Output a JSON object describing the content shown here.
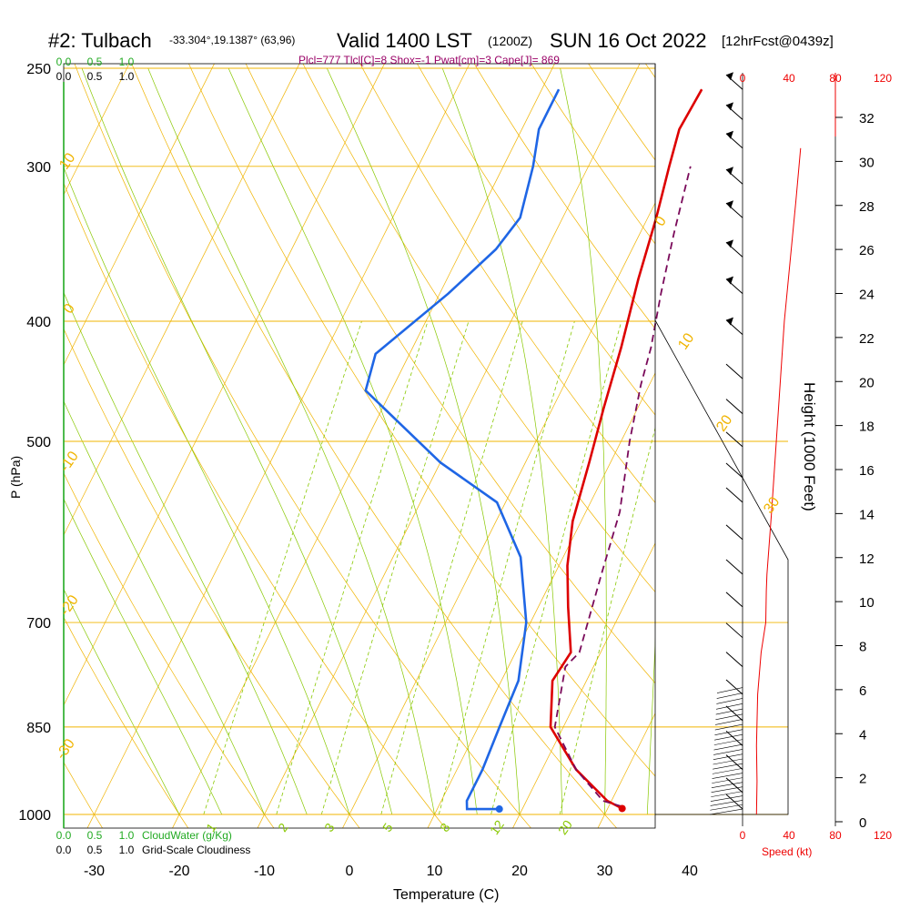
{
  "header": {
    "site": "#2: Tulbach",
    "coords": "-33.304°,19.1387° (63,96)",
    "valid": "Valid 1400 LST",
    "zulu": "(1200Z)",
    "date": "SUN 16 Oct 2022",
    "fcst": "[12hrFcst@0439z]",
    "params": "Plcl=777 Tlcl[C]=8 Shox=-1 Pwat[cm]=3 Cape[J]= 869"
  },
  "colors": {
    "temperature": "#dd0000",
    "dewpoint": "#1f66e5",
    "parcel": "#7a0a5a",
    "isobar": "#f0b400",
    "mixing_ratio": "#88c800",
    "dry_adiabat": "#f0b400",
    "moist_adiabat": "#88c800",
    "cloud_scale": "#22aa22",
    "speed": "#ee0000",
    "param_text": "#990066"
  },
  "chart_data": {
    "type": "line",
    "subtype": "skew-t sounding",
    "xlabel": "Temperature (C)",
    "ylabel": "P (hPa)",
    "right_ylabel": "Height (1000 Feet)",
    "x_ticks": [
      -30,
      -20,
      -10,
      0,
      10,
      20,
      30,
      40
    ],
    "pressure_ticks": [
      250,
      300,
      400,
      500,
      700,
      850,
      1000
    ],
    "height_ticks": [
      0,
      2,
      4,
      6,
      8,
      10,
      12,
      14,
      16,
      18,
      20,
      22,
      24,
      26,
      28,
      30,
      32
    ],
    "dry_adiabat_labels": [
      "-20",
      "-10",
      "0",
      "10",
      "20",
      "30",
      "10",
      "0",
      "-10",
      "-20",
      "-30"
    ],
    "mixing_ratio_labels": [
      "1",
      "2",
      "3",
      "5",
      "8",
      "12",
      "20"
    ],
    "speed_ticks": [
      "0",
      "40",
      "80",
      "120"
    ],
    "cloud_ticks_top_green": [
      "0.0",
      "0.5",
      "1.0"
    ],
    "cloud_ticks_top_black": [
      "0.0",
      "0.5",
      "1.0"
    ],
    "cloud_ticks_bottom_green": [
      "0.0",
      "0.5",
      "1.0"
    ],
    "cloud_ticks_bottom_black": [
      "0.0",
      "0.5",
      "1.0"
    ],
    "cloudwater_label": "CloudWater (g/Kg)",
    "cloudiness_label": "Grid-Scale Cloudiness",
    "speed_label": "Speed (kt)",
    "series": [
      {
        "name": "Temperature",
        "points": [
          [
            31.7,
            989
          ],
          [
            29.5,
            975
          ],
          [
            24,
            920
          ],
          [
            18.5,
            850
          ],
          [
            16,
            780
          ],
          [
            16.5,
            740
          ],
          [
            13.5,
            680
          ],
          [
            11,
            630
          ],
          [
            9,
            580
          ],
          [
            7.5,
            520
          ],
          [
            6,
            470
          ],
          [
            4.5,
            420
          ],
          [
            2.5,
            370
          ],
          [
            1,
            330
          ],
          [
            -0.5,
            300
          ],
          [
            -1.5,
            280
          ],
          [
            -1.2,
            260
          ]
        ]
      },
      {
        "name": "Dewpoint",
        "points": [
          [
            17.3,
            990
          ],
          [
            13.5,
            990
          ],
          [
            13,
            975
          ],
          [
            13,
            920
          ],
          [
            12.5,
            850
          ],
          [
            12,
            780
          ],
          [
            9.5,
            700
          ],
          [
            5,
            620
          ],
          [
            -1,
            560
          ],
          [
            -10,
            520
          ],
          [
            -23,
            455
          ],
          [
            -24,
            425
          ],
          [
            -19,
            380
          ],
          [
            -16,
            350
          ],
          [
            -15,
            330
          ],
          [
            -16.5,
            300
          ],
          [
            -18,
            280
          ],
          [
            -18,
            260
          ]
        ]
      },
      {
        "name": "Parcel",
        "points": [
          [
            31.5,
            985
          ],
          [
            29,
            975
          ],
          [
            24,
            920
          ],
          [
            19,
            850
          ],
          [
            16.7,
            760
          ],
          [
            17.5,
            740
          ],
          [
            15.5,
            640
          ],
          [
            14,
            570
          ],
          [
            11,
            500
          ],
          [
            9,
            450
          ],
          [
            8,
            420
          ],
          [
            6,
            380
          ],
          [
            4,
            340
          ],
          [
            2,
            300
          ]
        ]
      },
      {
        "name": "Wind speed",
        "points": [
          [
            12,
            1000
          ],
          [
            12.5,
            940
          ],
          [
            12,
            880
          ],
          [
            13,
            800
          ],
          [
            16,
            740
          ],
          [
            20,
            700
          ],
          [
            20.5,
            660
          ],
          [
            21,
            640
          ],
          [
            25,
            570
          ],
          [
            36,
            400
          ],
          [
            46,
            320
          ],
          [
            50,
            290
          ]
        ]
      }
    ]
  }
}
